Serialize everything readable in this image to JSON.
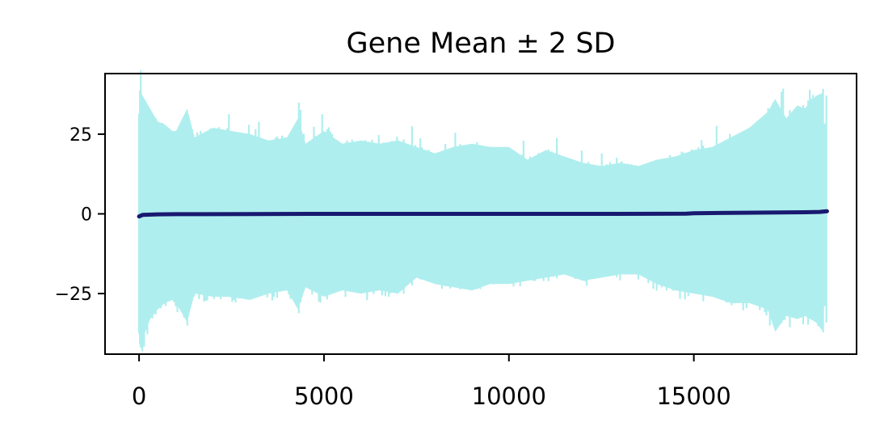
{
  "chart_data": {
    "type": "line",
    "title": "Gene Mean ± 2 SD",
    "xlabel": "",
    "ylabel": "",
    "xlim": [
      -920,
      19400
    ],
    "ylim": [
      -44,
      44
    ],
    "x_ticks": [
      0,
      5000,
      10000,
      15000
    ],
    "x_tick_labels": [
      "0",
      "5000",
      "10000",
      "15000"
    ],
    "y_ticks": [
      25,
      0,
      -25
    ],
    "y_tick_labels": [
      "25",
      "0",
      "−25"
    ],
    "grid": false,
    "legend": "none",
    "n_genes": 18600,
    "series": [
      {
        "role": "mean",
        "color": "#191970",
        "x": [
          0,
          100,
          500,
          1000,
          3000,
          5000,
          8000,
          10000,
          12000,
          14000,
          14800,
          15000,
          16000,
          17000,
          18000,
          18400,
          18600
        ],
        "y": [
          -0.8,
          -0.3,
          -0.15,
          -0.1,
          -0.05,
          0,
          0,
          0,
          0,
          0.02,
          0.05,
          0.2,
          0.3,
          0.4,
          0.5,
          0.6,
          0.8
        ]
      },
      {
        "role": "band",
        "color": "#afeeee",
        "x": [
          0,
          100,
          200,
          300,
          500,
          700,
          900,
          1000,
          1300,
          1500,
          2000,
          2500,
          3000,
          3500,
          4000,
          4300,
          4500,
          5000,
          5500,
          6000,
          6500,
          7000,
          7500,
          8000,
          8500,
          9000,
          9500,
          10000,
          10500,
          11000,
          11500,
          12000,
          12500,
          13000,
          13500,
          14000,
          14500,
          15000,
          15500,
          16000,
          16500,
          17000,
          17200,
          17500,
          17800,
          18000,
          18300,
          18500
        ],
        "upper": [
          39,
          37,
          35,
          33,
          29,
          28,
          26,
          26,
          33,
          24,
          27,
          26,
          25,
          23,
          24,
          30,
          22,
          26,
          22,
          23,
          22,
          23,
          21,
          19,
          21,
          22,
          21,
          21,
          17,
          20,
          18,
          16,
          15,
          16,
          15,
          17,
          18,
          20,
          21,
          24,
          27,
          32,
          36,
          30,
          34,
          33,
          37,
          38
        ],
        "lower": [
          -41,
          -39,
          -36,
          -33,
          -30,
          -28,
          -27,
          -28,
          -34,
          -25,
          -26,
          -26,
          -27,
          -25,
          -24,
          -30,
          -23,
          -26,
          -24,
          -25,
          -24,
          -25,
          -20,
          -22,
          -23,
          -24,
          -22,
          -22,
          -21,
          -20,
          -19,
          -21,
          -20,
          -19,
          -19,
          -22,
          -24,
          -25,
          -26,
          -28,
          -28,
          -30,
          -37,
          -32,
          -33,
          -32,
          -34,
          -37
        ]
      }
    ]
  }
}
